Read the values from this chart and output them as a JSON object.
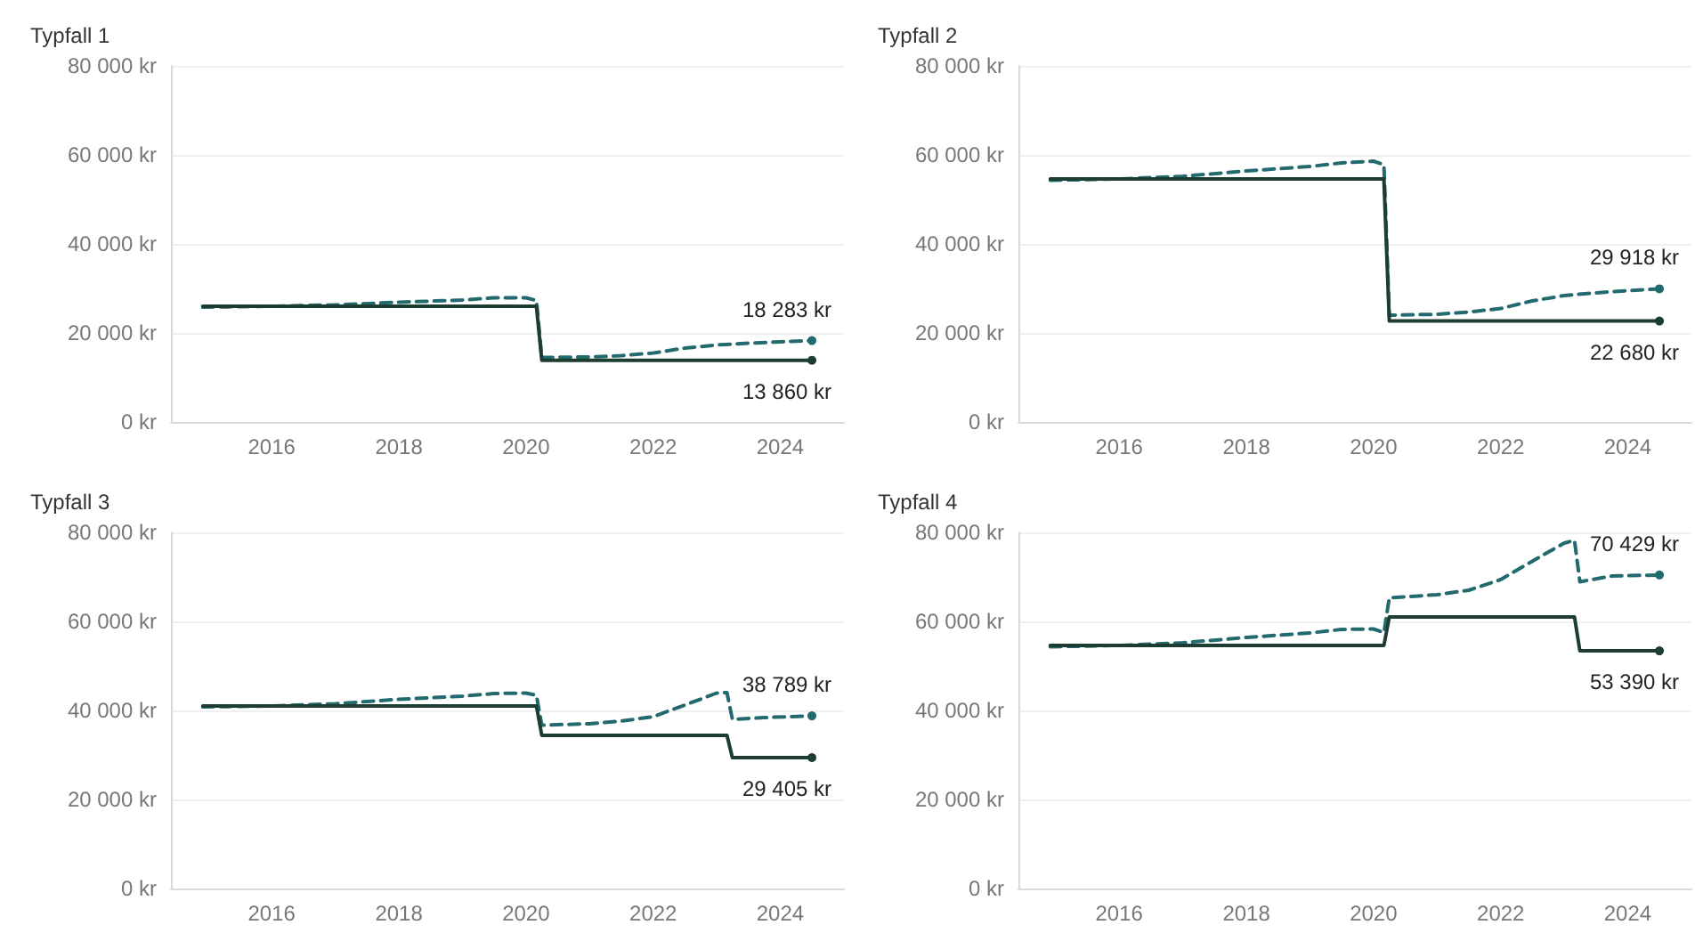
{
  "chart_data": [
    {
      "type": "line",
      "title": "Typfall 1",
      "xlim": [
        "2014-06",
        "2025-01"
      ],
      "xticks": [
        "2016",
        "2018",
        "2020",
        "2022",
        "2024"
      ],
      "ylim": [
        0,
        80000
      ],
      "yticks": [
        {
          "value": 0,
          "label": "0 kr"
        },
        {
          "value": 20000,
          "label": "20 000 kr"
        },
        {
          "value": 40000,
          "label": "40 000 kr"
        },
        {
          "value": 60000,
          "label": "60 000 kr"
        },
        {
          "value": 80000,
          "label": "80 000 kr"
        }
      ],
      "grid": "y",
      "marker": "none",
      "series": [
        {
          "color": "#236a6e",
          "line_style": "dashed",
          "x": [
            "2014-12",
            "2016-01",
            "2017-01",
            "2018-01",
            "2019-01",
            "2019-07",
            "2020-01",
            "2020-03",
            "2020-04",
            "2021-01",
            "2021-07",
            "2022-01",
            "2022-07",
            "2023-01",
            "2023-07",
            "2024-01",
            "2024-07"
          ],
          "values": [
            25800,
            26000,
            26300,
            26900,
            27400,
            27900,
            27900,
            27300,
            14500,
            14600,
            14900,
            15500,
            16600,
            17300,
            17700,
            18000,
            18283
          ],
          "value_labels": [
            null,
            null,
            null,
            null,
            null,
            null,
            null,
            null,
            null,
            null,
            null,
            null,
            null,
            null,
            null,
            null,
            "18 283 kr"
          ]
        },
        {
          "color": "#1e3d32",
          "line_style": "solid",
          "x": [
            "2014-12",
            "2020-03",
            "2020-04",
            "2024-07"
          ],
          "values": [
            26000,
            26000,
            13860,
            13860
          ],
          "value_labels": [
            null,
            null,
            null,
            "13 860 kr"
          ]
        }
      ]
    },
    {
      "type": "line",
      "title": "Typfall 2",
      "xlim": [
        "2014-06",
        "2025-01"
      ],
      "xticks": [
        "2016",
        "2018",
        "2020",
        "2022",
        "2024"
      ],
      "ylim": [
        0,
        80000
      ],
      "yticks": [
        {
          "value": 0,
          "label": "0 kr"
        },
        {
          "value": 20000,
          "label": "20 000 kr"
        },
        {
          "value": 40000,
          "label": "40 000 kr"
        },
        {
          "value": 60000,
          "label": "60 000 kr"
        },
        {
          "value": 80000,
          "label": "80 000 kr"
        }
      ],
      "grid": "y",
      "marker": "none",
      "series": [
        {
          "color": "#236a6e",
          "line_style": "dashed",
          "x": [
            "2014-12",
            "2016-01",
            "2017-01",
            "2018-01",
            "2019-01",
            "2019-07",
            "2020-01",
            "2020-03",
            "2020-04",
            "2021-01",
            "2021-07",
            "2022-01",
            "2022-07",
            "2023-01",
            "2023-07",
            "2024-01",
            "2024-07"
          ],
          "values": [
            54300,
            54600,
            55200,
            56400,
            57400,
            58200,
            58600,
            57800,
            24000,
            24200,
            24700,
            25500,
            27200,
            28400,
            29000,
            29500,
            29918
          ],
          "value_labels": [
            null,
            null,
            null,
            null,
            null,
            null,
            null,
            null,
            null,
            null,
            null,
            null,
            null,
            null,
            null,
            null,
            "29 918 kr"
          ]
        },
        {
          "color": "#1e3d32",
          "line_style": "solid",
          "x": [
            "2014-12",
            "2020-03",
            "2020-04",
            "2024-07"
          ],
          "values": [
            54600,
            54600,
            22680,
            22680
          ],
          "value_labels": [
            null,
            null,
            null,
            "22 680 kr"
          ]
        }
      ]
    },
    {
      "type": "line",
      "title": "Typfall 3",
      "xlim": [
        "2014-06",
        "2025-01"
      ],
      "xticks": [
        "2016",
        "2018",
        "2020",
        "2022",
        "2024"
      ],
      "ylim": [
        0,
        80000
      ],
      "yticks": [
        {
          "value": 0,
          "label": "0 kr"
        },
        {
          "value": 20000,
          "label": "20 000 kr"
        },
        {
          "value": 40000,
          "label": "40 000 kr"
        },
        {
          "value": 60000,
          "label": "60 000 kr"
        },
        {
          "value": 80000,
          "label": "80 000 kr"
        }
      ],
      "grid": "y",
      "marker": "none",
      "series": [
        {
          "color": "#236a6e",
          "line_style": "dashed",
          "x": [
            "2014-12",
            "2016-01",
            "2017-01",
            "2018-01",
            "2019-01",
            "2019-07",
            "2020-01",
            "2020-03",
            "2020-04",
            "2021-01",
            "2021-07",
            "2022-01",
            "2022-07",
            "2023-01",
            "2023-03",
            "2023-04",
            "2023-10",
            "2024-07"
          ],
          "values": [
            40800,
            41000,
            41500,
            42500,
            43200,
            43800,
            43900,
            43400,
            36700,
            37000,
            37600,
            38600,
            41200,
            43900,
            44000,
            38000,
            38400,
            38789
          ],
          "value_labels": [
            null,
            null,
            null,
            null,
            null,
            null,
            null,
            null,
            null,
            null,
            null,
            null,
            null,
            null,
            null,
            null,
            null,
            "38 789 kr"
          ]
        },
        {
          "color": "#1e3d32",
          "line_style": "solid",
          "x": [
            "2014-12",
            "2020-03",
            "2020-04",
            "2023-03",
            "2023-04",
            "2024-07"
          ],
          "values": [
            41000,
            41000,
            34400,
            34400,
            29405,
            29405
          ],
          "value_labels": [
            null,
            null,
            null,
            null,
            null,
            "29 405 kr"
          ]
        }
      ]
    },
    {
      "type": "line",
      "title": "Typfall 4",
      "xlim": [
        "2014-06",
        "2025-01"
      ],
      "xticks": [
        "2016",
        "2018",
        "2020",
        "2022",
        "2024"
      ],
      "ylim": [
        0,
        80000
      ],
      "yticks": [
        {
          "value": 0,
          "label": "0 kr"
        },
        {
          "value": 20000,
          "label": "20 000 kr"
        },
        {
          "value": 40000,
          "label": "40 000 kr"
        },
        {
          "value": 60000,
          "label": "60 000 kr"
        },
        {
          "value": 80000,
          "label": "80 000 kr"
        }
      ],
      "grid": "y",
      "marker": "none",
      "series": [
        {
          "color": "#236a6e",
          "line_style": "dashed",
          "x": [
            "2014-12",
            "2016-01",
            "2017-01",
            "2018-01",
            "2019-01",
            "2019-07",
            "2020-01",
            "2020-03",
            "2020-04",
            "2021-01",
            "2021-07",
            "2022-01",
            "2022-07",
            "2023-01",
            "2023-03",
            "2023-04",
            "2023-10",
            "2024-07"
          ],
          "values": [
            54300,
            54600,
            55200,
            56400,
            57400,
            58200,
            58300,
            57500,
            65300,
            66000,
            67000,
            69400,
            73500,
            77600,
            78200,
            68900,
            70200,
            70429
          ],
          "value_labels": [
            null,
            null,
            null,
            null,
            null,
            null,
            null,
            null,
            null,
            null,
            null,
            null,
            null,
            null,
            null,
            null,
            null,
            "70 429 kr"
          ]
        },
        {
          "color": "#1e3d32",
          "line_style": "solid",
          "x": [
            "2014-12",
            "2020-03",
            "2020-04",
            "2023-03",
            "2023-04",
            "2024-07"
          ],
          "values": [
            54600,
            54600,
            61000,
            61000,
            53390,
            53390
          ],
          "value_labels": [
            null,
            null,
            null,
            null,
            null,
            "53 390 kr"
          ]
        }
      ]
    }
  ]
}
